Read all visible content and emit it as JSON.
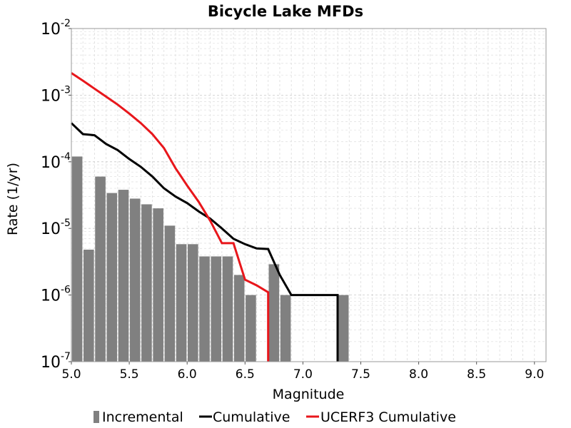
{
  "chart_data": {
    "type": "bar+line",
    "title": "Bicycle Lake MFDs",
    "xlabel": "Magnitude",
    "ylabel": "Rate (1/yr)",
    "xlim": [
      5.0,
      9.1
    ],
    "ylim": [
      1e-07,
      0.01
    ],
    "yscale": "log",
    "grid": true,
    "legend_position": "bottom",
    "x_ticks": [
      "5.0",
      "5.5",
      "6.0",
      "6.5",
      "7.0",
      "7.5",
      "8.0",
      "8.5",
      "9.0"
    ],
    "y_ticks": [
      {
        "base": "10",
        "exp": "-7"
      },
      {
        "base": "10",
        "exp": "-6"
      },
      {
        "base": "10",
        "exp": "-5"
      },
      {
        "base": "10",
        "exp": "-4"
      },
      {
        "base": "10",
        "exp": "-3"
      },
      {
        "base": "10",
        "exp": "-2"
      }
    ],
    "series": [
      {
        "name": "Incremental",
        "kind": "bar",
        "color": "#808080",
        "bar_width": 0.09,
        "x": [
          5.05,
          5.15,
          5.25,
          5.35,
          5.45,
          5.55,
          5.65,
          5.75,
          5.85,
          5.95,
          6.05,
          6.15,
          6.25,
          6.35,
          6.45,
          6.55,
          6.75,
          6.85,
          7.35
        ],
        "y": [
          0.00012,
          4.8e-06,
          6e-05,
          3.4e-05,
          3.8e-05,
          2.8e-05,
          2.3e-05,
          2e-05,
          1.1e-05,
          5.8e-06,
          5.8e-06,
          3.8e-06,
          3.8e-06,
          3.8e-06,
          2e-06,
          1e-06,
          2.9e-06,
          1e-06,
          1e-06
        ]
      },
      {
        "name": "Cumulative",
        "kind": "line",
        "color": "#000000",
        "x": [
          5.0,
          5.1,
          5.2,
          5.3,
          5.4,
          5.5,
          5.6,
          5.7,
          5.8,
          5.9,
          6.0,
          6.1,
          6.2,
          6.3,
          6.4,
          6.5,
          6.6,
          6.7,
          6.8,
          6.9,
          7.0,
          7.1,
          7.2,
          7.3,
          7.3
        ],
        "y": [
          0.00038,
          0.00026,
          0.00025,
          0.000185,
          0.00015,
          0.00011,
          8.4e-05,
          6e-05,
          4e-05,
          3e-05,
          2.4e-05,
          1.8e-05,
          1.4e-05,
          1e-05,
          7e-06,
          5.8e-06,
          5e-06,
          4.9e-06,
          2e-06,
          1e-06,
          1e-06,
          1e-06,
          1e-06,
          1e-06,
          1e-07
        ]
      },
      {
        "name": "UCERF3 Cumulative",
        "kind": "line",
        "color": "#e8161b",
        "x": [
          5.0,
          5.1,
          5.2,
          5.3,
          5.4,
          5.5,
          5.6,
          5.7,
          5.8,
          5.9,
          6.0,
          6.1,
          6.2,
          6.3,
          6.4,
          6.5,
          6.6,
          6.7,
          6.7
        ],
        "y": [
          0.00215,
          0.00165,
          0.00125,
          0.00095,
          0.00072,
          0.00053,
          0.00038,
          0.00026,
          0.00016,
          8e-05,
          4.4e-05,
          2.5e-05,
          1.3e-05,
          6e-06,
          6e-06,
          1.7e-06,
          1.4e-06,
          1.1e-06,
          1e-07
        ]
      }
    ]
  }
}
